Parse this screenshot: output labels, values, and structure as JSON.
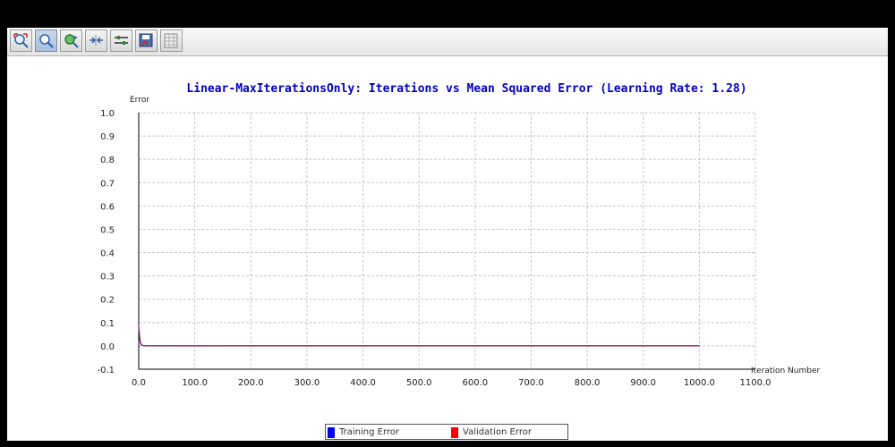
{
  "toolbar": {
    "buttons": [
      {
        "icon": "zoom-reset-icon"
      },
      {
        "icon": "zoom-icon"
      },
      {
        "icon": "pan-icon"
      },
      {
        "icon": "fit-icon"
      },
      {
        "icon": "options-icon"
      },
      {
        "icon": "save-icon"
      },
      {
        "icon": "table-icon"
      }
    ]
  },
  "colors": {
    "title": "#0000cc",
    "training": "#0000ff",
    "validation": "#ff0000",
    "overlay_line": "#a0224e",
    "grid": "#c8c8c8"
  },
  "chart_data": {
    "type": "line",
    "title": "Linear-MaxIterationsOnly: Iterations vs Mean Squared Error (Learning Rate: 1.28)",
    "xlabel": "Iteration Number",
    "ylabel": "Error",
    "xlim": [
      0,
      1100
    ],
    "ylim": [
      -0.1,
      1.0
    ],
    "xticks": [
      "0.0",
      "100.0",
      "200.0",
      "300.0",
      "400.0",
      "500.0",
      "600.0",
      "700.0",
      "800.0",
      "900.0",
      "1000.0",
      "1100.0"
    ],
    "yticks": [
      "1.0",
      "0.9",
      "0.8",
      "0.7",
      "0.6",
      "0.5",
      "0.4",
      "0.3",
      "0.2",
      "0.1",
      "0.0",
      "-0.1"
    ],
    "grid": true,
    "legend_position": "bottom",
    "series": [
      {
        "name": "Training Error",
        "x": [
          0,
          1,
          2,
          3,
          5,
          8,
          15,
          50,
          200,
          500,
          1000
        ],
        "y": [
          0.08,
          0.05,
          0.025,
          0.012,
          0.004,
          0.001,
          0.0005,
          0.0003,
          0.0002,
          0.0002,
          0.0002
        ]
      },
      {
        "name": "Validation Error",
        "x": [
          0,
          1,
          2,
          3,
          5,
          8,
          15,
          50,
          200,
          500,
          1000
        ],
        "y": [
          0.09,
          0.06,
          0.03,
          0.015,
          0.005,
          0.0012,
          0.0006,
          0.0003,
          0.0002,
          0.0002,
          0.0002
        ]
      }
    ]
  }
}
